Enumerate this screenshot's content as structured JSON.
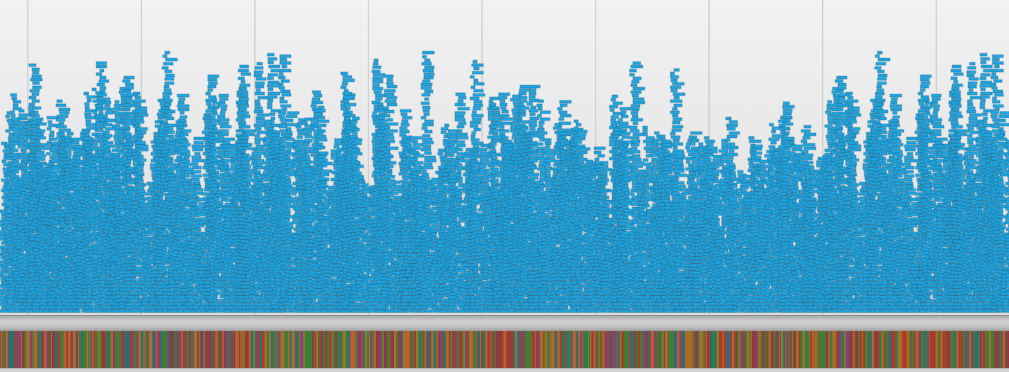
{
  "view": {
    "mode": "event-timeline-with-overview"
  },
  "timeline": {
    "background": "#ececec",
    "gridline_color": "#b4b4b4",
    "gridline_count": 9,
    "bar_color": "#1ba7e6",
    "bar_edge_color": "#2f6f8c"
  },
  "overview": {
    "colors": [
      "#b5412e",
      "#c96a2a",
      "#3f8a3a",
      "#5a7f3a",
      "#8a4d7a",
      "#2e7a7a",
      "#a7832e",
      "#9a3f4a"
    ]
  }
}
